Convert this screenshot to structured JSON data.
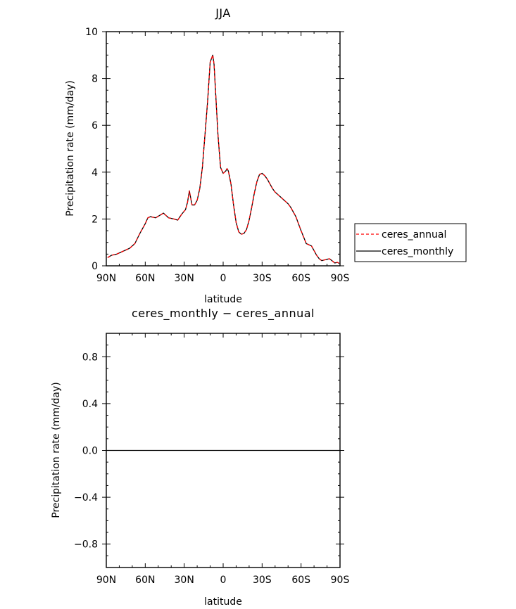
{
  "chart_data": [
    {
      "type": "line",
      "title": "JJA",
      "xlabel": "latitude",
      "ylabel": "Precipitation rate (mm/day)",
      "xlim": [
        90,
        -90
      ],
      "ylim": [
        0,
        10
      ],
      "xticks": [
        90,
        60,
        30,
        0,
        -30,
        -60,
        -90
      ],
      "xtick_labels": [
        "90N",
        "60N",
        "30N",
        "0",
        "30S",
        "60S",
        "90S"
      ],
      "yticks": [
        0,
        2,
        4,
        6,
        8,
        10
      ],
      "ytick_labels": [
        "0",
        "2",
        "4",
        "6",
        "8",
        "10"
      ],
      "grid": false,
      "legend": "right",
      "x": [
        89,
        86,
        82,
        76,
        72,
        68,
        64,
        60,
        58,
        56,
        52,
        49,
        46,
        42,
        38,
        35,
        32,
        29,
        27.5,
        26,
        24,
        22,
        20,
        18,
        16,
        14,
        12,
        10,
        8,
        7,
        6,
        4,
        2,
        0,
        -2,
        -3,
        -4,
        -6,
        -8,
        -10,
        -12,
        -14,
        -16,
        -18,
        -20,
        -22,
        -24,
        -26,
        -28,
        -30,
        -32,
        -34,
        -36,
        -38,
        -40,
        -42,
        -44,
        -46,
        -48,
        -50,
        -52,
        -56,
        -60,
        -64,
        -68,
        -70,
        -72,
        -74,
        -76,
        -78,
        -80,
        -82,
        -86,
        -88,
        -89.5
      ],
      "series": [
        {
          "name": "ceres_annual",
          "color": "#ff0000",
          "dash": "dashed",
          "values": [
            0.35,
            0.45,
            0.5,
            0.65,
            0.75,
            0.95,
            1.4,
            1.8,
            2.05,
            2.1,
            2.05,
            2.15,
            2.25,
            2.05,
            2.0,
            1.95,
            2.2,
            2.4,
            2.7,
            3.2,
            2.6,
            2.6,
            2.8,
            3.3,
            4.2,
            5.6,
            7.0,
            8.7,
            9.0,
            8.6,
            7.6,
            5.6,
            4.2,
            3.95,
            4.05,
            4.15,
            4.05,
            3.5,
            2.6,
            1.85,
            1.45,
            1.35,
            1.38,
            1.55,
            1.95,
            2.5,
            3.1,
            3.6,
            3.9,
            3.95,
            3.85,
            3.7,
            3.5,
            3.3,
            3.15,
            3.05,
            2.95,
            2.85,
            2.75,
            2.65,
            2.5,
            2.1,
            1.5,
            0.95,
            0.85,
            0.65,
            0.45,
            0.3,
            0.22,
            0.25,
            0.28,
            0.3,
            0.12,
            0.15,
            0.1
          ]
        },
        {
          "name": "ceres_monthly",
          "color": "#000000",
          "dash": "solid",
          "values": [
            0.35,
            0.45,
            0.5,
            0.65,
            0.75,
            0.95,
            1.4,
            1.8,
            2.05,
            2.1,
            2.05,
            2.15,
            2.25,
            2.05,
            2.0,
            1.95,
            2.2,
            2.4,
            2.7,
            3.2,
            2.6,
            2.6,
            2.8,
            3.3,
            4.2,
            5.6,
            7.0,
            8.7,
            9.0,
            8.6,
            7.6,
            5.6,
            4.2,
            3.95,
            4.05,
            4.15,
            4.05,
            3.5,
            2.6,
            1.85,
            1.45,
            1.35,
            1.38,
            1.55,
            1.95,
            2.5,
            3.1,
            3.6,
            3.9,
            3.95,
            3.85,
            3.7,
            3.5,
            3.3,
            3.15,
            3.05,
            2.95,
            2.85,
            2.75,
            2.65,
            2.5,
            2.1,
            1.5,
            0.95,
            0.85,
            0.65,
            0.45,
            0.3,
            0.22,
            0.25,
            0.28,
            0.3,
            0.12,
            0.15,
            0.1
          ]
        }
      ]
    },
    {
      "type": "line",
      "title": "ceres_monthly − ceres_annual",
      "xlabel": "latitude",
      "ylabel": "Precipitation rate (mm/day)",
      "xlim": [
        90,
        -90
      ],
      "ylim": [
        -1.0,
        1.0
      ],
      "xticks": [
        90,
        60,
        30,
        0,
        -30,
        -60,
        -90
      ],
      "xtick_labels": [
        "90N",
        "60N",
        "30N",
        "0",
        "30S",
        "60S",
        "90S"
      ],
      "yticks": [
        -0.8,
        -0.4,
        0.0,
        0.4,
        0.8
      ],
      "ytick_labels": [
        "−0.8",
        "−0.4",
        "0.0",
        "0.4",
        "0.8"
      ],
      "grid": false,
      "series": [
        {
          "color": "#000000",
          "x": [
            90,
            -90
          ],
          "values": [
            0,
            0
          ]
        }
      ]
    }
  ]
}
